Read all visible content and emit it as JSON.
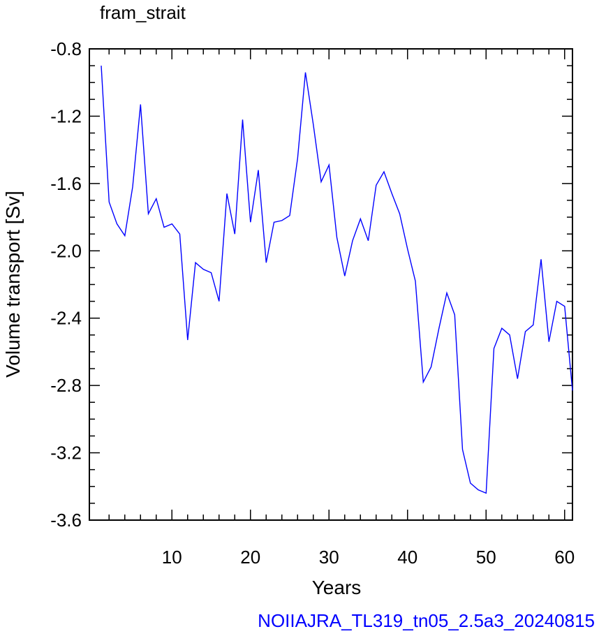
{
  "chart_data": {
    "type": "line",
    "title": "fram_strait",
    "xlabel": "Years",
    "ylabel": "Volume transport [Sv]",
    "footer": "NOIIAJRA_TL319_tn05_2.5a3_20240815",
    "xlim": [
      1,
      61
    ],
    "ylim": [
      -3.6,
      -0.8
    ],
    "x_ticks": [
      "10",
      "20",
      "30",
      "40",
      "50",
      "60"
    ],
    "y_ticks": [
      "-0.8",
      "-1.2",
      "-1.6",
      "-2.0",
      "-2.4",
      "-2.8",
      "-3.2",
      "-3.6"
    ],
    "grid": false,
    "series": [
      {
        "color": "#0000ff",
        "x": [
          1,
          2,
          3,
          4,
          5,
          6,
          7,
          8,
          9,
          10,
          11,
          12,
          13,
          14,
          15,
          16,
          17,
          18,
          19,
          20,
          21,
          22,
          23,
          24,
          25,
          26,
          27,
          28,
          29,
          30,
          31,
          32,
          33,
          34,
          35,
          36,
          37,
          38,
          39,
          40,
          41,
          42,
          43,
          44,
          45,
          46,
          47,
          48,
          49,
          50,
          51,
          52,
          53,
          54,
          55,
          56,
          57,
          58,
          59,
          60,
          61
        ],
        "values": [
          -0.9,
          -1.71,
          -1.84,
          -1.91,
          -1.62,
          -1.13,
          -1.78,
          -1.69,
          -1.86,
          -1.84,
          -1.9,
          -2.53,
          -2.07,
          -2.11,
          -2.13,
          -2.3,
          -1.66,
          -1.9,
          -1.22,
          -1.83,
          -1.52,
          -2.07,
          -1.83,
          -1.82,
          -1.79,
          -1.45,
          -0.94,
          -1.25,
          -1.59,
          -1.49,
          -1.92,
          -2.15,
          -1.94,
          -1.81,
          -1.94,
          -1.61,
          -1.53,
          -1.66,
          -1.78,
          -1.99,
          -2.18,
          -2.78,
          -2.69,
          -2.46,
          -2.25,
          -2.38,
          -3.18,
          -3.38,
          -3.42,
          -3.44,
          -2.58,
          -2.46,
          -2.5,
          -2.76,
          -2.48,
          -2.44,
          -2.05,
          -2.54,
          -2.3,
          -2.33,
          -2.83
        ]
      }
    ]
  }
}
